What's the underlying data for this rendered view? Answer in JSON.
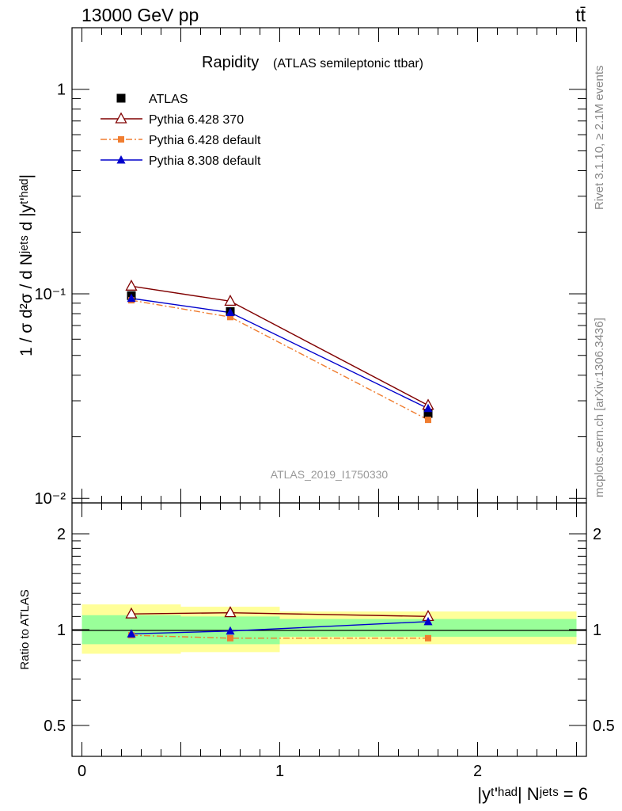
{
  "header": {
    "energy_label": "13000 GeV pp",
    "process_label": "tt̄"
  },
  "side_labels": {
    "rivet": "Rivet 3.1.10, ≥ 2.1M events",
    "mcplots": "mcplots.cern.ch [arXiv:1306.3436]"
  },
  "chart_data": [
    {
      "type": "line",
      "title": "Rapidity",
      "subtitle": "(ATLAS semileptonic ttbar)",
      "watermark": "ATLAS_2019_I1750330",
      "ylabel": "1 / σ d²σ / d Nʲᵉᵗˢ d |yᵗ'ʰᵃᵈ|",
      "yscale": "log",
      "ylim": [
        0.0095,
        2.0
      ],
      "xlim": [
        -0.05,
        2.55
      ],
      "y_ticks": [
        {
          "value": 0.01,
          "label": "10⁻²"
        },
        {
          "value": 0.1,
          "label": "10⁻¹"
        },
        {
          "value": 1,
          "label": "1"
        }
      ],
      "legend_position": "top-left",
      "series": [
        {
          "name": "ATLAS",
          "color": "#000000",
          "marker": "square-filled",
          "line": "none",
          "x": [
            0.25,
            0.75,
            1.75
          ],
          "y": [
            0.098,
            0.082,
            0.026
          ]
        },
        {
          "name": "Pythia 6.428 370",
          "color": "#800000",
          "marker": "triangle-open",
          "line": "solid",
          "x": [
            0.25,
            0.75,
            1.75
          ],
          "y": [
            0.109,
            0.092,
            0.0285
          ]
        },
        {
          "name": "Pythia 6.428 default",
          "color": "#f07d30",
          "marker": "square-filled-small",
          "line": "dashdot",
          "x": [
            0.25,
            0.75,
            1.75
          ],
          "y": [
            0.093,
            0.077,
            0.0242
          ]
        },
        {
          "name": "Pythia 8.308 default",
          "color": "#0000cc",
          "marker": "triangle-filled",
          "line": "solid",
          "x": [
            0.25,
            0.75,
            1.75
          ],
          "y": [
            0.095,
            0.081,
            0.0275
          ]
        }
      ]
    },
    {
      "type": "line",
      "ylabel": "Ratio to ATLAS",
      "xlabel": "|yᵗ'ʰᵃᵈ| Nʲᵉᵗˢ = 6",
      "yscale": "log",
      "ylim": [
        0.4,
        2.5
      ],
      "xlim": [
        -0.05,
        2.55
      ],
      "y_ticks": [
        {
          "value": 0.5,
          "label": "0.5"
        },
        {
          "value": 1,
          "label": "1"
        },
        {
          "value": 2,
          "label": "2"
        }
      ],
      "x_ticks": [
        {
          "value": 0,
          "label": "0"
        },
        {
          "value": 1,
          "label": "1"
        },
        {
          "value": 2,
          "label": "2"
        }
      ],
      "bands": [
        {
          "x0": 0.0,
          "x1": 0.5,
          "stat_lo": 0.9,
          "stat_hi": 1.11,
          "tot_lo": 0.84,
          "tot_hi": 1.2
        },
        {
          "x0": 0.5,
          "x1": 1.0,
          "stat_lo": 0.9,
          "stat_hi": 1.1,
          "tot_lo": 0.85,
          "tot_hi": 1.18
        },
        {
          "x0": 1.0,
          "x1": 2.5,
          "stat_lo": 0.95,
          "stat_hi": 1.08,
          "tot_lo": 0.9,
          "tot_hi": 1.14
        }
      ],
      "band_colors": {
        "total": "#ffff99",
        "stat": "#99ff99"
      },
      "series": [
        {
          "name": "Pythia 6.428 370",
          "color": "#800000",
          "marker": "triangle-open",
          "line": "solid",
          "x": [
            0.25,
            0.75,
            1.75
          ],
          "y": [
            1.12,
            1.13,
            1.1
          ]
        },
        {
          "name": "Pythia 6.428 default",
          "color": "#f07d30",
          "marker": "square-filled-small",
          "line": "dashdot",
          "x": [
            0.25,
            0.75,
            1.75
          ],
          "y": [
            0.96,
            0.94,
            0.94
          ]
        },
        {
          "name": "Pythia 8.308 default",
          "color": "#0000cc",
          "marker": "triangle-filled",
          "line": "solid",
          "x": [
            0.25,
            0.75,
            1.75
          ],
          "y": [
            0.97,
            0.99,
            1.06
          ]
        }
      ]
    }
  ]
}
